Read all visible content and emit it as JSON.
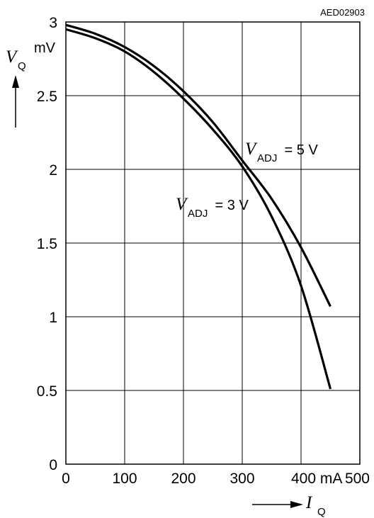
{
  "chart_data": {
    "type": "line",
    "figure_code": "AED02903",
    "x": {
      "ticks": [
        0,
        100,
        200,
        300,
        400,
        500
      ],
      "tick_labels": [
        "0",
        "100",
        "200",
        "300",
        "400 mA",
        "500"
      ],
      "lim": [
        0,
        500
      ],
      "label_symbol": "I",
      "label_subscript": "Q"
    },
    "y": {
      "ticks": [
        0,
        0.5,
        1,
        1.5,
        2,
        2.5,
        3
      ],
      "tick_labels": [
        "0",
        "0.5",
        "1",
        "1.5",
        "2",
        "2.5",
        "3"
      ],
      "lim": [
        0,
        3
      ],
      "unit": "mV",
      "label_symbol": "V",
      "label_subscript": "Q"
    },
    "grid": true,
    "series": [
      {
        "name": "V_ADJ = 5 V",
        "label_symbol": "V",
        "label_subscript": "ADJ",
        "label_value": " = 5 V",
        "x": [
          0,
          50,
          100,
          150,
          200,
          250,
          300,
          350,
          400,
          450
        ],
        "y": [
          2.98,
          2.92,
          2.83,
          2.7,
          2.53,
          2.32,
          2.06,
          1.8,
          1.47,
          1.07
        ]
      },
      {
        "name": "V_ADJ = 3 V",
        "label_symbol": "V",
        "label_subscript": "ADJ",
        "label_value": " = 3 V",
        "x": [
          0,
          50,
          100,
          150,
          200,
          250,
          300,
          350,
          400,
          450
        ],
        "y": [
          2.95,
          2.89,
          2.8,
          2.66,
          2.48,
          2.27,
          2.02,
          1.68,
          1.21,
          0.51
        ]
      }
    ]
  }
}
